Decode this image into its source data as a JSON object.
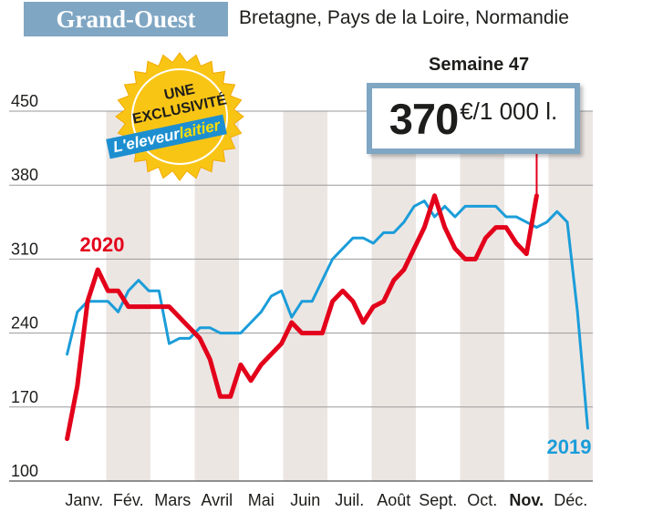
{
  "header": {
    "title": "Grand-Ouest",
    "subtitle": "Bretagne, Pays de la Loire, Normandie"
  },
  "badge": {
    "line1": "UNE",
    "line2": "EXCLUSIVITÉ",
    "brand_part1": "L'eleveur",
    "brand_part2": "laitier"
  },
  "highlight": {
    "week_label": "Semaine 47",
    "value": "370",
    "unit": "€/1 000 l."
  },
  "colors": {
    "accent_blue": "#7fa6c3",
    "series_2020": "#e3001b",
    "series_2019": "#1b9dd9",
    "band": "#ece6e3",
    "badge_yellow": "#f9c515"
  },
  "chart_data": {
    "type": "line",
    "title": "Grand-Ouest",
    "subtitle": "Bretagne, Pays de la Loire, Normandie",
    "xlabel": "",
    "ylabel": "€/1 000 l.",
    "ylim": [
      100,
      450
    ],
    "yticks": [
      100,
      170,
      240,
      310,
      380,
      450
    ],
    "months": [
      "Janv.",
      "Fév.",
      "Mars",
      "Avril",
      "Mai",
      "Juin",
      "Juil.",
      "Août",
      "Sept.",
      "Oct.",
      "Nov.",
      "Déc."
    ],
    "highlight_month": "Nov.",
    "grid": true,
    "series": [
      {
        "name": "2019",
        "points": [
          [
            1,
            220
          ],
          [
            2,
            260
          ],
          [
            3,
            270
          ],
          [
            4,
            270
          ],
          [
            5,
            270
          ],
          [
            6,
            260
          ],
          [
            7,
            280
          ],
          [
            8,
            290
          ],
          [
            9,
            280
          ],
          [
            10,
            280
          ],
          [
            11,
            230
          ],
          [
            12,
            235
          ],
          [
            13,
            235
          ],
          [
            14,
            245
          ],
          [
            15,
            245
          ],
          [
            16,
            240
          ],
          [
            17,
            240
          ],
          [
            18,
            240
          ],
          [
            19,
            250
          ],
          [
            20,
            260
          ],
          [
            21,
            275
          ],
          [
            22,
            280
          ],
          [
            23,
            255
          ],
          [
            24,
            270
          ],
          [
            25,
            270
          ],
          [
            26,
            290
          ],
          [
            27,
            310
          ],
          [
            28,
            320
          ],
          [
            29,
            330
          ],
          [
            30,
            330
          ],
          [
            31,
            325
          ],
          [
            32,
            335
          ],
          [
            33,
            335
          ],
          [
            34,
            345
          ],
          [
            35,
            360
          ],
          [
            36,
            365
          ],
          [
            37,
            350
          ],
          [
            38,
            360
          ],
          [
            39,
            350
          ],
          [
            40,
            360
          ],
          [
            41,
            360
          ],
          [
            42,
            360
          ],
          [
            43,
            360
          ],
          [
            44,
            350
          ],
          [
            45,
            350
          ],
          [
            46,
            345
          ],
          [
            47,
            340
          ],
          [
            48,
            345
          ],
          [
            49,
            355
          ],
          [
            50,
            345
          ],
          [
            51,
            260
          ],
          [
            52,
            150
          ]
        ]
      },
      {
        "name": "2020",
        "points": [
          [
            1,
            140
          ],
          [
            2,
            190
          ],
          [
            3,
            270
          ],
          [
            4,
            300
          ],
          [
            5,
            280
          ],
          [
            6,
            280
          ],
          [
            7,
            265
          ],
          [
            8,
            265
          ],
          [
            9,
            265
          ],
          [
            10,
            265
          ],
          [
            11,
            265
          ],
          [
            12,
            255
          ],
          [
            13,
            245
          ],
          [
            14,
            235
          ],
          [
            15,
            215
          ],
          [
            16,
            180
          ],
          [
            17,
            180
          ],
          [
            18,
            210
          ],
          [
            19,
            195
          ],
          [
            20,
            210
          ],
          [
            21,
            220
          ],
          [
            22,
            230
          ],
          [
            23,
            250
          ],
          [
            24,
            240
          ],
          [
            25,
            240
          ],
          [
            26,
            240
          ],
          [
            27,
            270
          ],
          [
            28,
            280
          ],
          [
            29,
            270
          ],
          [
            30,
            250
          ],
          [
            31,
            265
          ],
          [
            32,
            270
          ],
          [
            33,
            290
          ],
          [
            34,
            300
          ],
          [
            35,
            320
          ],
          [
            36,
            340
          ],
          [
            37,
            370
          ],
          [
            38,
            340
          ],
          [
            39,
            320
          ],
          [
            40,
            310
          ],
          [
            41,
            310
          ],
          [
            42,
            330
          ],
          [
            43,
            340
          ],
          [
            44,
            340
          ],
          [
            45,
            325
          ],
          [
            46,
            315
          ],
          [
            47,
            370
          ]
        ]
      }
    ],
    "series_labels": [
      "2020",
      "2019"
    ]
  }
}
